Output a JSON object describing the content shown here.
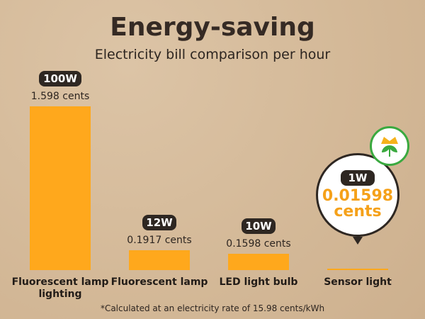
{
  "chart_data": {
    "type": "bar",
    "title": "Energy-saving",
    "subtitle": "Electricity bill comparison per hour",
    "categories": [
      "Fluorescent lamp lighting",
      "Fluorescent lamp",
      "LED light bulb",
      "Sensor light"
    ],
    "values": [
      1.598,
      0.1917,
      0.1598,
      0.01598
    ],
    "value_labels": [
      "1.598 cents",
      "0.1917 cents",
      "0.1598 cents",
      "0.01598 cents"
    ],
    "wattage_labels": [
      "100W",
      "12W",
      "10W",
      "1W"
    ],
    "color": "#ffa81c",
    "note": "*Calculated at an electricity rate of 15.98 cents/kWh"
  }
}
